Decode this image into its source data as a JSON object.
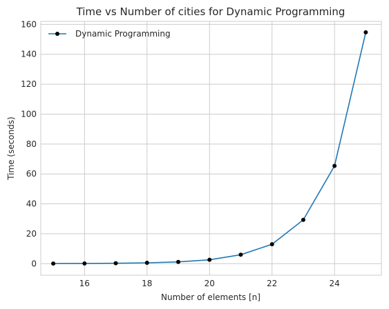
{
  "chart_data": {
    "type": "line",
    "title": "Time vs Number of cities for Dynamic Programming",
    "xlabel": "Number of elements [n]",
    "ylabel": "Time (seconds)",
    "xlim": [
      14.6,
      25.5
    ],
    "ylim": [
      -7.7,
      162
    ],
    "xticks": [
      16,
      18,
      20,
      22,
      24
    ],
    "yticks": [
      0,
      20,
      40,
      60,
      80,
      100,
      120,
      140,
      160
    ],
    "grid": true,
    "legend_position": "upper-left",
    "series": [
      {
        "name": "Dynamic Programming",
        "color": "#1f77b4",
        "marker_color": "#000000",
        "x": [
          15,
          16,
          17,
          18,
          19,
          20,
          21,
          22,
          23,
          24,
          25
        ],
        "y": [
          0.1,
          0.15,
          0.3,
          0.6,
          1.2,
          2.6,
          6.0,
          13.0,
          29.3,
          65.4,
          154.7
        ]
      }
    ]
  }
}
